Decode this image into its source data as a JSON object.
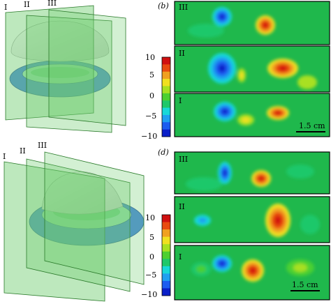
{
  "panel_b": {
    "letter": "(b)",
    "strips": [
      "III",
      "II",
      "I"
    ],
    "scalebar": "1.5 cm"
  },
  "panel_d": {
    "letter": "(d)",
    "strips": [
      "III",
      "II",
      "I"
    ],
    "scalebar": "1.5 cm"
  },
  "panel_a": {
    "planes": [
      "I",
      "II",
      "III"
    ]
  },
  "panel_c": {
    "planes": [
      "I",
      "II",
      "III"
    ]
  },
  "colorbar_top": {
    "ticks": [
      "10",
      "5",
      "0",
      "−5",
      "−10"
    ]
  },
  "colorbar_bottom": {
    "ticks": [
      "10",
      "5",
      "0",
      "−5",
      "−10"
    ]
  },
  "colors": {
    "background": "#1fb84c",
    "scale": [
      "#0a1fc8",
      "#1c5cf0",
      "#1fa0f0",
      "#18d8d8",
      "#1fc86a",
      "#4cd030",
      "#a8e020",
      "#f0e020",
      "#f0a020",
      "#e84a10",
      "#d01010"
    ],
    "plane": "#6ccc6c",
    "torus": "#4a86e0",
    "torus_inner": "#9ee0b8"
  }
}
